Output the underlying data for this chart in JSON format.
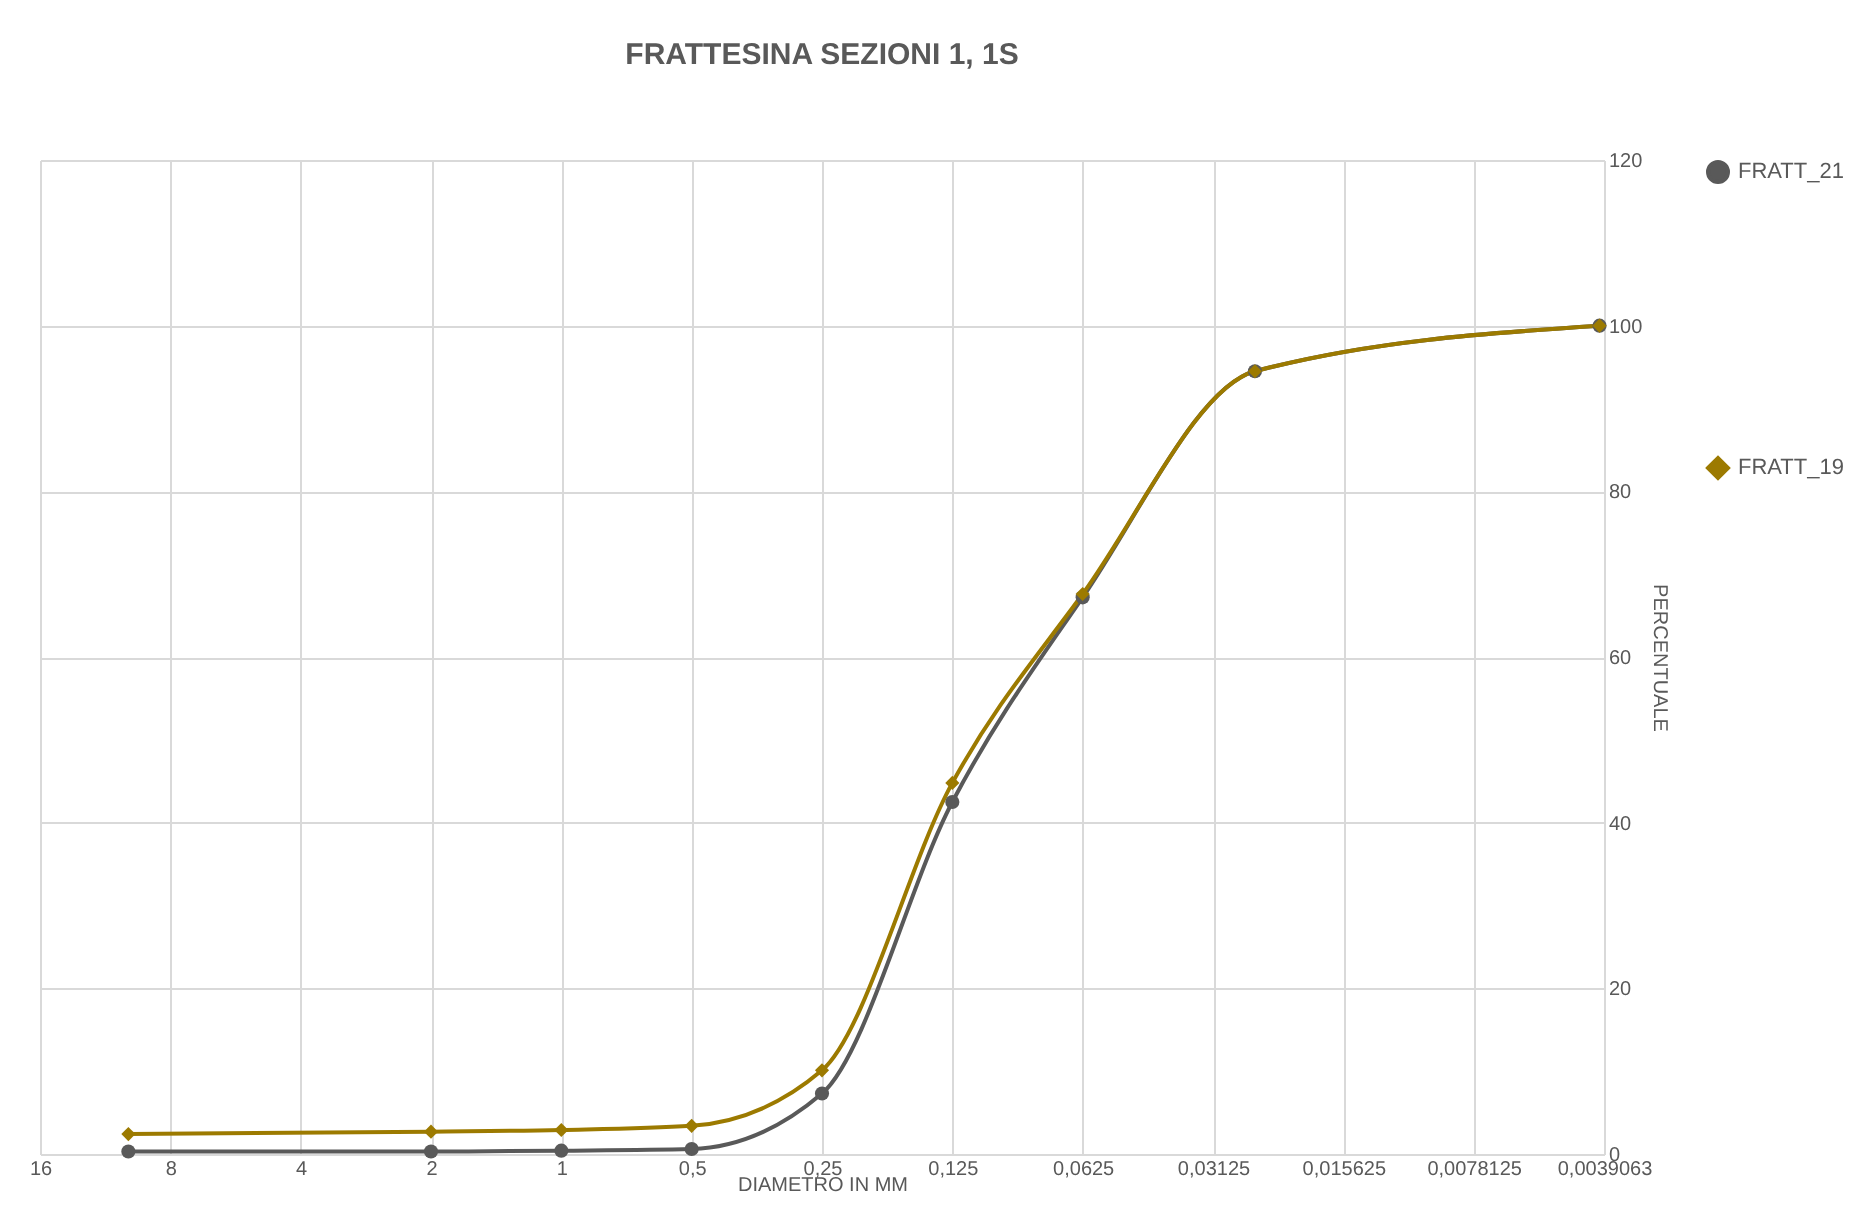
{
  "chart_data": {
    "type": "line",
    "title": "FRATTESINA SEZIONI 1, 1S",
    "xlabel": "DIAMETRO IN MM",
    "ylabel": "PERCENTUALE",
    "x": [
      10,
      2,
      1,
      0.5,
      0.25,
      0.125,
      0.0625,
      0.025,
      0.004
    ],
    "series": [
      {
        "name": "FRATT_21",
        "color": "#595959",
        "marker": "circle",
        "values": [
          0.3,
          0.3,
          0.4,
          0.6,
          7.3,
          42.5,
          67.2,
          94.5,
          100
        ]
      },
      {
        "name": "FRATT_19",
        "color": "#9c7a00",
        "marker": "diamond",
        "values": [
          2.4,
          2.7,
          2.9,
          3.4,
          10.1,
          44.8,
          67.6,
          94.5,
          100
        ]
      }
    ],
    "log": "x",
    "xlim": [
      16,
      0.0039063
    ],
    "xticks": [
      16,
      8,
      4,
      2,
      1,
      {
        "value": 0.5,
        "label": "0,5"
      },
      {
        "value": 0.25,
        "label": "0,25"
      },
      {
        "value": 0.125,
        "label": "0,125"
      },
      {
        "value": 0.0625,
        "label": "0,0625"
      },
      {
        "value": 0.03125,
        "label": "0,03125"
      },
      {
        "value": 0.015625,
        "label": "0,015625"
      },
      {
        "value": 0.0078125,
        "label": "0,0078125"
      },
      {
        "value": 0.0039063,
        "label": "0,0039063"
      }
    ],
    "ylim": [
      0,
      120
    ],
    "yticks": [
      0,
      20,
      40,
      60,
      80,
      100,
      120
    ],
    "grid": true,
    "legend": "right"
  }
}
